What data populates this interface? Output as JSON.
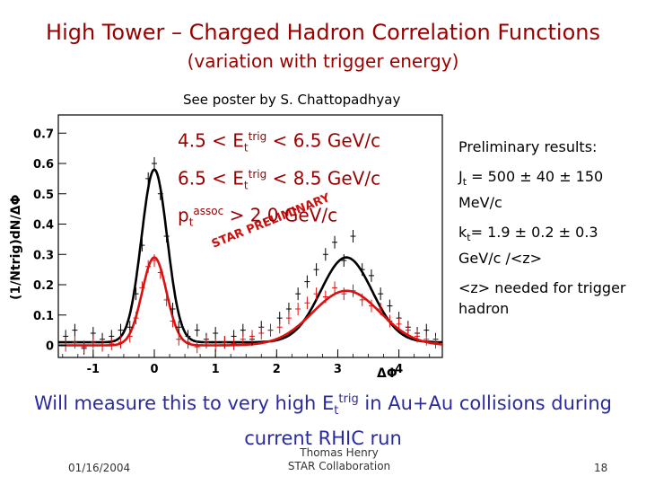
{
  "slide": {
    "title": "High Tower – Charged Hadron Correlation Functions",
    "subtitle": "(variation with trigger energy)",
    "poster_note": "See poster by S. Chattopadhyay",
    "cuts": [
      {
        "pre": "4.5 < E",
        "sub": "t",
        "sup": "trig",
        "post": " < 6.5 GeV/c"
      },
      {
        "pre": "6.5 < E",
        "sub": "t",
        "sup": "trig",
        "post": " < 8.5 GeV/c"
      },
      {
        "pre": "p",
        "sub": "t",
        "sup": "assoc",
        "post": " > 2.0 GeV/c"
      }
    ],
    "results": {
      "heading": "Preliminary results:",
      "jt_pre": "J",
      "jt_sub": "t",
      "jt_post": " = 500 ± 40 ± 150 MeV/c",
      "kt_pre": "k",
      "kt_sub": "t",
      "kt_post": "= 1.9 ± 0.2 ± 0.3 GeV/c /<z>",
      "note": "<z> needed for trigger hadron"
    },
    "bottom": {
      "pre": "Will measure this to very high E",
      "sub": "t",
      "sup": "trig",
      "post": " in Au+Au collisions during current RHIC run"
    },
    "footer": {
      "date": "01/16/2004",
      "author_line1": "Thomas Henry",
      "author_line2": "STAR Collaboration",
      "page": "18"
    },
    "colors": {
      "title": "#990000",
      "bottom_text": "#2a2aa0",
      "low_series": "#000000",
      "high_series": "#dd1010"
    }
  },
  "chart_data": {
    "type": "scatter",
    "title": "",
    "xlabel": "ΔΦ",
    "ylabel": "(1/Ntrig)dN/ΔΦ",
    "watermark": "STAR PRELIMINARY",
    "xlim": [
      -1.57,
      4.71
    ],
    "ylim": [
      -0.04,
      0.76
    ],
    "x_ticks": [
      -1,
      0,
      1,
      2,
      3,
      4
    ],
    "y_ticks": [
      0,
      0.1,
      0.2,
      0.3,
      0.4,
      0.5,
      0.6,
      0.7
    ],
    "x_tick_labels": [
      "-1",
      "0",
      "1",
      "2",
      "3",
      "4"
    ],
    "y_tick_labels": [
      "0",
      "0.1",
      "0.2",
      "0.3",
      "0.4",
      "0.5",
      "0.6",
      "0.7"
    ],
    "series": [
      {
        "color": "#000000",
        "fit": {
          "baseline": 0.01,
          "near_amp": 0.57,
          "near_sigma": 0.21,
          "away_amp": 0.28,
          "away_sigma": 0.42,
          "away_mu": 3.1416
        },
        "x": [
          -1.45,
          -1.3,
          -1.15,
          -1.0,
          -0.85,
          -0.7,
          -0.55,
          -0.4,
          -0.3,
          -0.2,
          -0.1,
          0.0,
          0.1,
          0.2,
          0.3,
          0.4,
          0.55,
          0.7,
          0.85,
          1.0,
          1.15,
          1.3,
          1.45,
          1.6,
          1.75,
          1.9,
          2.05,
          2.2,
          2.35,
          2.5,
          2.65,
          2.8,
          2.95,
          3.1,
          3.25,
          3.4,
          3.55,
          3.7,
          3.85,
          4.0,
          4.15,
          4.3,
          4.45,
          4.6
        ],
        "y": [
          0.03,
          0.05,
          -0.01,
          0.04,
          0.02,
          0.03,
          0.05,
          0.06,
          0.17,
          0.33,
          0.55,
          0.6,
          0.5,
          0.36,
          0.12,
          0.06,
          0.03,
          0.05,
          0.02,
          0.04,
          0.01,
          0.03,
          0.05,
          0.02,
          0.06,
          0.05,
          0.09,
          0.12,
          0.17,
          0.21,
          0.25,
          0.3,
          0.34,
          0.28,
          0.36,
          0.25,
          0.23,
          0.17,
          0.13,
          0.09,
          0.06,
          0.04,
          0.05,
          0.02
        ]
      },
      {
        "color": "#dd1010",
        "fit": {
          "baseline": 0.0,
          "near_amp": 0.29,
          "near_sigma": 0.2,
          "away_amp": 0.18,
          "away_sigma": 0.55,
          "away_mu": 3.1416
        },
        "x": [
          -1.45,
          -1.3,
          -1.15,
          -1.0,
          -0.85,
          -0.7,
          -0.55,
          -0.4,
          -0.3,
          -0.2,
          -0.1,
          0.0,
          0.1,
          0.2,
          0.3,
          0.4,
          0.55,
          0.7,
          0.85,
          1.0,
          1.15,
          1.3,
          1.45,
          1.6,
          1.75,
          1.9,
          2.05,
          2.2,
          2.35,
          2.5,
          2.65,
          2.8,
          2.95,
          3.1,
          3.25,
          3.4,
          3.55,
          3.7,
          3.85,
          4.0,
          4.15,
          4.3,
          4.45,
          4.6
        ],
        "y": [
          0.0,
          0.01,
          -0.005,
          0.01,
          0.0,
          0.005,
          0.01,
          0.03,
          0.09,
          0.19,
          0.26,
          0.28,
          0.24,
          0.15,
          0.08,
          0.02,
          0.01,
          -0.005,
          0.01,
          0.0,
          0.01,
          0.005,
          0.02,
          0.03,
          0.04,
          0.05,
          0.06,
          0.09,
          0.12,
          0.14,
          0.17,
          0.16,
          0.19,
          0.17,
          0.18,
          0.15,
          0.13,
          0.12,
          0.08,
          0.07,
          0.05,
          0.03,
          0.02,
          0.01
        ]
      }
    ]
  }
}
